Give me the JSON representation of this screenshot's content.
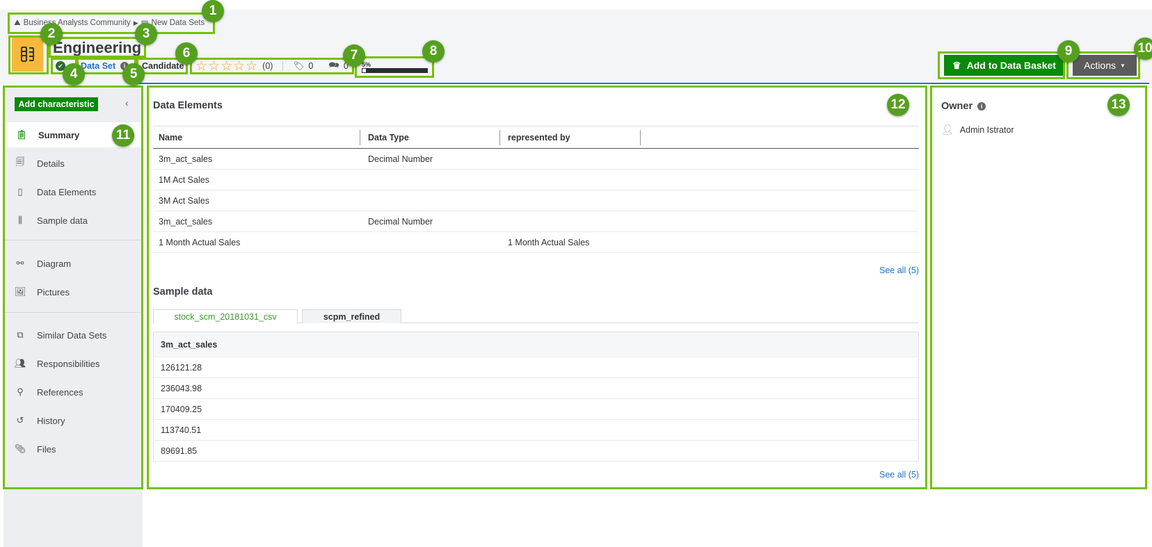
{
  "header": {
    "breadcrumb": [
      {
        "label": "Business Analysts Community",
        "icon": "community-icon"
      },
      {
        "label": "New Data Sets",
        "icon": "domain-icon"
      }
    ],
    "title": "Engineering",
    "status_icon": "certified-check-icon",
    "asset_type": "Data Set",
    "status": "Candidate",
    "rating": {
      "stars": 0,
      "max": 5,
      "count_label": "(0)"
    },
    "tags_count": "0",
    "comments_count": "0",
    "completeness": {
      "label": "5%",
      "percent": 5
    },
    "add_basket_label": "Add to Data Basket",
    "actions_label": "Actions"
  },
  "sidebar": {
    "add_characteristic": "Add characteristic",
    "groups": [
      [
        {
          "label": "Summary",
          "icon": "clipboard-icon",
          "active": true
        },
        {
          "label": "Details",
          "icon": "details-icon"
        },
        {
          "label": "Data Elements",
          "icon": "data-element-icon"
        },
        {
          "label": "Sample data",
          "icon": "sample-data-icon"
        }
      ],
      [
        {
          "label": "Diagram",
          "icon": "diagram-icon"
        },
        {
          "label": "Pictures",
          "icon": "picture-icon"
        }
      ],
      [
        {
          "label": "Similar Data Sets",
          "icon": "similar-icon"
        },
        {
          "label": "Responsibilities",
          "icon": "people-icon"
        },
        {
          "label": "References",
          "icon": "references-icon"
        },
        {
          "label": "History",
          "icon": "history-icon"
        },
        {
          "label": "Files",
          "icon": "paperclip-icon"
        }
      ]
    ]
  },
  "data_elements": {
    "heading": "Data Elements",
    "columns": [
      "Name",
      "Data Type",
      "represented by"
    ],
    "rows": [
      [
        "3m_act_sales",
        "Decimal Number",
        ""
      ],
      [
        "1M Act Sales",
        "",
        ""
      ],
      [
        "3M Act Sales",
        "",
        ""
      ],
      [
        "3m_act_sales",
        "Decimal Number",
        ""
      ],
      [
        "1 Month Actual Sales",
        "",
        "1 Month Actual Sales"
      ]
    ],
    "see_all": "See all (5)"
  },
  "sample_data": {
    "heading": "Sample data",
    "tabs": [
      {
        "label": "stock_scm_20181031_csv",
        "active": true
      },
      {
        "label": "scpm_refined"
      }
    ],
    "column": "3m_act_sales",
    "rows": [
      "126121.28",
      "236043.98",
      "170409.25",
      "113740.51",
      "89691.85"
    ],
    "see_all": "See all (5)"
  },
  "owner": {
    "heading": "Owner",
    "name": "Admin Istrator"
  },
  "annotations": [
    "1",
    "2",
    "3",
    "4",
    "5",
    "6",
    "7",
    "8",
    "9",
    "10",
    "11",
    "12",
    "13"
  ],
  "colors": {
    "accent_green": "#0a8a0a",
    "annotation": "#77c000",
    "link": "#1f73c9",
    "star": "#f5a623"
  }
}
